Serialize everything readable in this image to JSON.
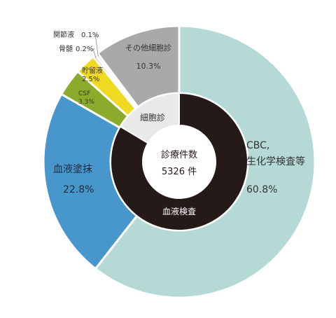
{
  "chart_data": {
    "type": "pie",
    "title": "",
    "center": {
      "title": "診療件数",
      "total": "5326 件"
    },
    "outer": [
      {
        "name_lines": [
          "CBC,",
          "生化学検査等"
        ],
        "value": 60.8,
        "label": "60.8%",
        "color": "#b5dad6"
      },
      {
        "name_lines": [
          "血液塗抹"
        ],
        "value": 22.8,
        "label": "22.8%",
        "color": "#4796cc"
      },
      {
        "name_lines": [
          "CSF"
        ],
        "value": 3.3,
        "label": "3.3%",
        "color": "#8cab2c"
      },
      {
        "name_lines": [
          "貯留液"
        ],
        "value": 2.5,
        "label": "2.5%",
        "color": "#f0da21"
      },
      {
        "name_lines": [
          "骨髄"
        ],
        "value": 0.2,
        "label": "0.2%",
        "color": "#eeb7a2"
      },
      {
        "name_lines": [
          "関節液"
        ],
        "value": 0.1,
        "label": "0.1%",
        "color": "#e7e7e7"
      },
      {
        "name_lines": [
          "その他細胞診"
        ],
        "value": 10.3,
        "label": "10.3%",
        "color": "#a9a9a9"
      }
    ],
    "inner": [
      {
        "name": "血液検査",
        "value": 83.6,
        "color": "#251a18"
      },
      {
        "name": "細胞診",
        "value": 16.4,
        "color": "#e9e9e9"
      }
    ]
  }
}
